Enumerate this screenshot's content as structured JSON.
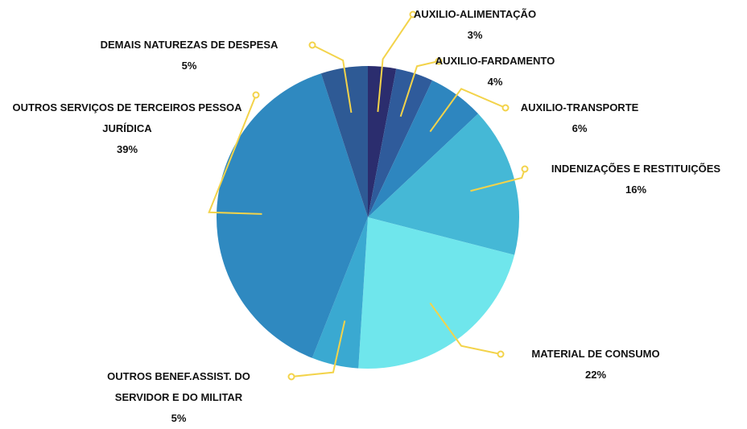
{
  "chart_data": {
    "type": "pie",
    "categories": [
      "AUXILIO-ALIMENTAÇÃO",
      "AUXILIO-FARDAMENTO",
      "AUXILIO-TRANSPORTE",
      "INDENIZAÇÕES E RESTITUIÇÕES",
      "MATERIAL DE CONSUMO",
      "OUTROS BENEF.ASSIST. DO SERVIDOR E DO MILITAR",
      "OUTROS SERVIÇOS DE TERCEIROS PESSOA JURÍDICA",
      "DEMAIS NATUREZAS DE DESPESA"
    ],
    "values": [
      3,
      4,
      6,
      16,
      22,
      5,
      39,
      5
    ],
    "value_labels": [
      "3%",
      "4%",
      "6%",
      "16%",
      "22%",
      "5%",
      "39%",
      "5%"
    ],
    "colors": [
      "#2b2d6e",
      "#2f5b9b",
      "#2e86bf",
      "#45b8d6",
      "#6fe6ec",
      "#3aa9d1",
      "#2f89c0",
      "#2e5a95"
    ]
  }
}
